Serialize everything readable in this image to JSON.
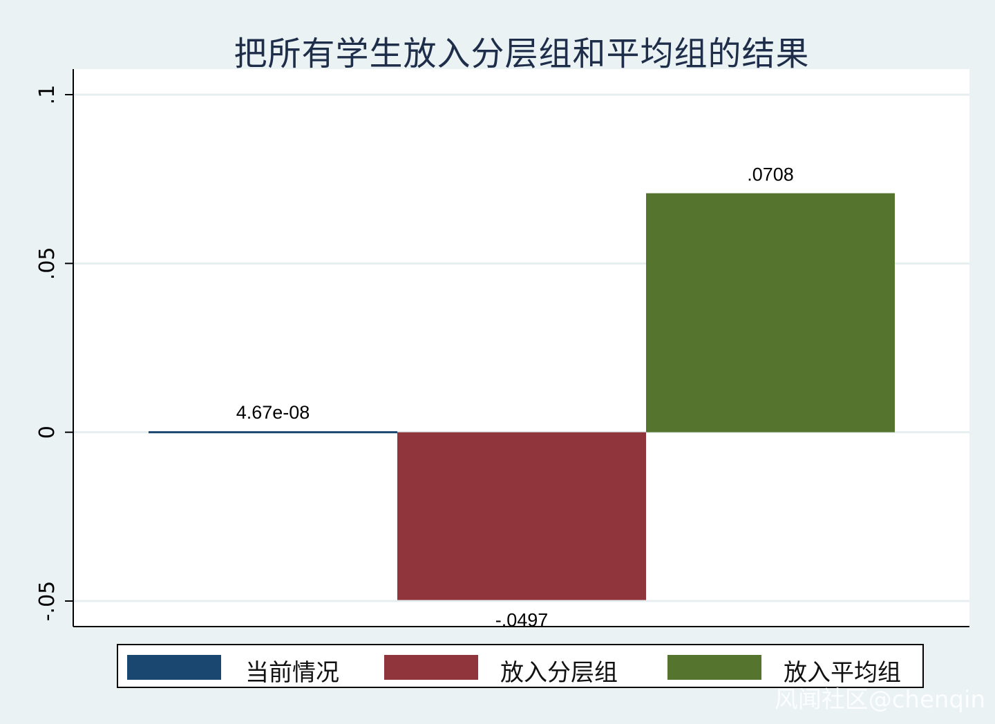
{
  "chart_data": {
    "type": "bar",
    "title": "把所有学生放入分层组和平均组的结果",
    "xlabel": "",
    "ylabel": "",
    "ylim": [
      -0.057,
      0.107
    ],
    "yticks": [
      {
        "value": 0.1,
        "label": ".1"
      },
      {
        "value": 0.05,
        "label": ".05"
      },
      {
        "value": 0,
        "label": "0"
      },
      {
        "value": -0.05,
        "label": "-.05"
      }
    ],
    "grid": true,
    "legend_position": "bottom",
    "series": [
      {
        "name": "当前情况",
        "value": 4.67e-08,
        "label": "4.67e-08",
        "color": "#1a476f"
      },
      {
        "name": "放入分层组",
        "value": -0.0497,
        "label": "-.0497",
        "color": "#90353b"
      },
      {
        "name": "放入平均组",
        "value": 0.0708,
        "label": ".0708",
        "color": "#55752f"
      }
    ]
  },
  "watermark": "风闻社区@chenqin"
}
